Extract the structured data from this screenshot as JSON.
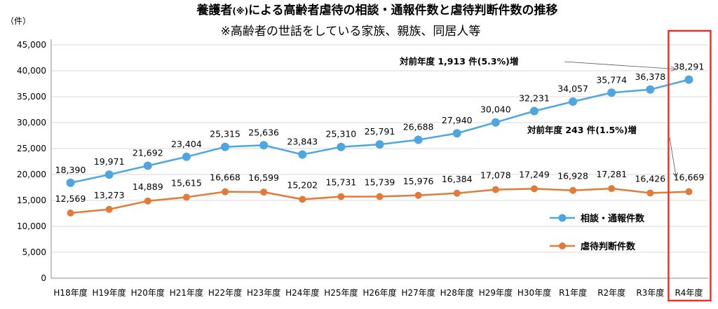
{
  "chart_data": {
    "type": "line",
    "title_prefix": "養護者",
    "title_mark": "(※)",
    "title_suffix": "による高齢者虐待の相談・通報件数と虐待判断件数の推移",
    "subtitle": "※高齢者の世話をしている家族、親族、同居人等",
    "ylabel": "（件）",
    "ylim": [
      0,
      45000
    ],
    "yticks": [
      "0",
      "5,000",
      "10,000",
      "15,000",
      "20,000",
      "25,000",
      "30,000",
      "35,000",
      "40,000",
      "45,000"
    ],
    "grid": true,
    "legend_position": "right",
    "categories": [
      "H18年度",
      "H19年度",
      "H20年度",
      "H21年度",
      "H22年度",
      "H23年度",
      "H24年度",
      "H25年度",
      "H26年度",
      "H27年度",
      "H28年度",
      "H29年度",
      "H30年度",
      "R1年度",
      "R2年度",
      "R3年度",
      "R4年度"
    ],
    "series": [
      {
        "name": "相談・通報件数",
        "color": "#4ea6e0",
        "values": [
          18390,
          19971,
          21692,
          23404,
          25315,
          25636,
          23843,
          25310,
          25791,
          26688,
          27940,
          30040,
          32231,
          34057,
          35774,
          36378,
          38291
        ],
        "labels": [
          "18,390",
          "19,971",
          "21,692",
          "23,404",
          "25,315",
          "25,636",
          "23,843",
          "25,310",
          "25,791",
          "26,688",
          "27,940",
          "30,040",
          "32,231",
          "34,057",
          "35,774",
          "36,378",
          "38,291"
        ]
      },
      {
        "name": "虐待判断件数",
        "color": "#e07b39",
        "values": [
          12569,
          13273,
          14889,
          15615,
          16668,
          16599,
          15202,
          15731,
          15739,
          15976,
          16384,
          17078,
          17249,
          16928,
          17281,
          16426,
          16669
        ],
        "labels": [
          "12,569",
          "13,273",
          "14,889",
          "15,615",
          "16,668",
          "16,599",
          "15,202",
          "15,731",
          "15,739",
          "15,976",
          "16,384",
          "17,078",
          "17,249",
          "16,928",
          "17,281",
          "16,426",
          "16,669"
        ]
      }
    ],
    "annotations": [
      {
        "text": "対前年度 1,913 件(5.3%)増",
        "series": 0
      },
      {
        "text": "対前年度 243 件(1.5%)増",
        "series": 1
      }
    ],
    "highlight_category": "R4年度",
    "highlight_color": "#e8332a"
  }
}
